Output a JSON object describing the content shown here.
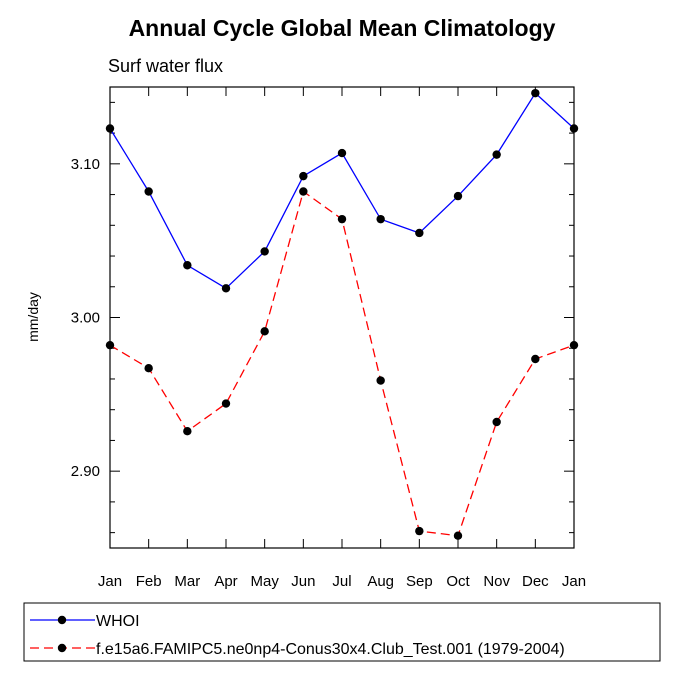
{
  "chart_data": {
    "type": "line",
    "title": "Annual Cycle Global Mean Climatology",
    "subtitle": "Surf water flux",
    "xlabel": "",
    "ylabel": "mm/day",
    "categories": [
      "Jan",
      "Feb",
      "Mar",
      "Apr",
      "May",
      "Jun",
      "Jul",
      "Aug",
      "Sep",
      "Oct",
      "Nov",
      "Dec",
      "Jan"
    ],
    "ylim": [
      2.85,
      3.15
    ],
    "yticks": [
      2.9,
      3.0,
      3.1
    ],
    "ytick_labels": [
      "2.90",
      "3.00",
      "3.10"
    ],
    "grid": false,
    "legend_position": "bottom",
    "series": [
      {
        "name": "WHOI",
        "color": "#0000ff",
        "dash": "solid",
        "values": [
          3.123,
          3.082,
          3.034,
          3.019,
          3.043,
          3.092,
          3.107,
          3.064,
          3.055,
          3.079,
          3.106,
          3.146,
          3.123
        ]
      },
      {
        "name": "f.e15a6.FAMIPC5.ne0np4-Conus30x4.Club_Test.001 (1979-2004)",
        "color": "#ff0000",
        "dash": "dashed",
        "values": [
          2.982,
          2.967,
          2.926,
          2.944,
          2.991,
          3.082,
          3.064,
          2.959,
          2.861,
          2.858,
          2.932,
          2.973,
          2.982
        ]
      }
    ]
  }
}
